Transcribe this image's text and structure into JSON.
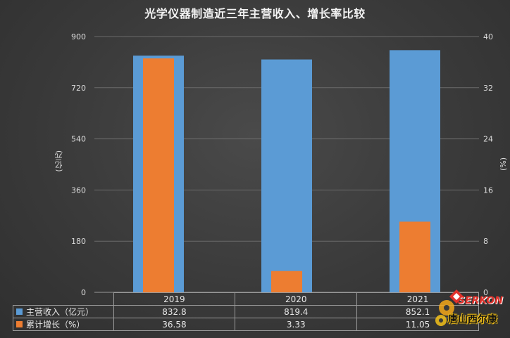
{
  "chart_data": {
    "type": "bar",
    "title": "光学仪器制造近三年主营收入、增长率比较",
    "categories": [
      "2019",
      "2020",
      "2021"
    ],
    "series": [
      {
        "name": "主营收入（亿元）",
        "axis": "left",
        "color": "#5b9bd5",
        "values": [
          832.8,
          819.4,
          852.1
        ]
      },
      {
        "name": "累计增长（%）",
        "axis": "right",
        "color": "#ed7d31",
        "values": [
          36.58,
          3.33,
          11.05
        ]
      }
    ],
    "ylabel": "(亿元)",
    "y2label": "(%)",
    "ylim": [
      0,
      900
    ],
    "y2lim": [
      0,
      40
    ],
    "yticks": [
      0,
      180,
      360,
      540,
      720,
      900
    ],
    "y2ticks": [
      0,
      8,
      16,
      24,
      32,
      40
    ],
    "grid": true,
    "legend": "data-table"
  },
  "table": {
    "rows": [
      {
        "label": "主营收入（亿元）",
        "color": "#5b9bd5",
        "values": [
          "832.8",
          "819.4",
          "852.1"
        ]
      },
      {
        "label": "累计增长（%）",
        "color": "#ed7d31",
        "values": [
          "36.58",
          "3.33",
          "11.05"
        ]
      }
    ]
  },
  "watermark": {
    "brand": "SERKON",
    "name": "唐山西尔康"
  }
}
